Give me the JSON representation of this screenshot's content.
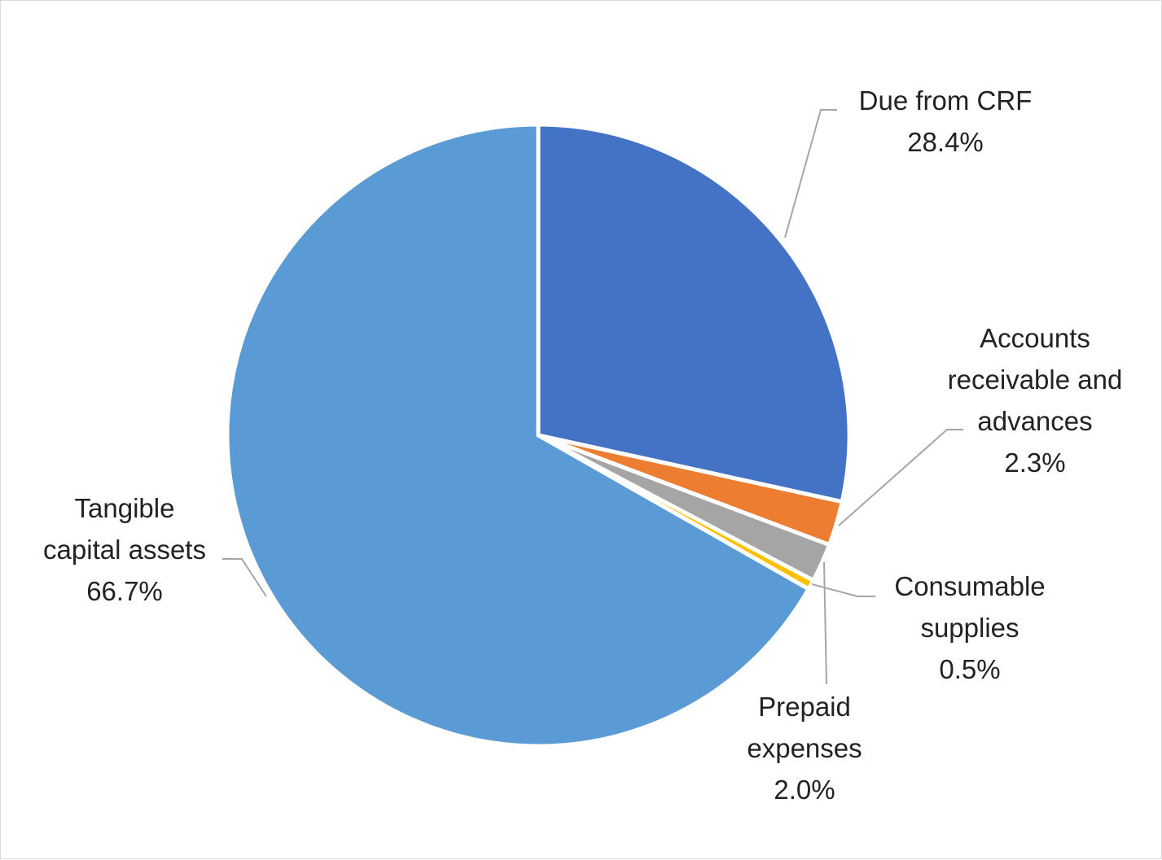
{
  "chart_data": {
    "type": "pie",
    "title": "",
    "slices": [
      {
        "label_lines": [
          "Due from CRF"
        ],
        "label": "Due from CRF",
        "value": 28.4,
        "value_text": "28.4%",
        "color": "#4472C4"
      },
      {
        "label_lines": [
          "Accounts",
          "receivable and",
          "advances"
        ],
        "label": "Accounts receivable and advances",
        "value": 2.3,
        "value_text": "2.3%",
        "color": "#ED7D31"
      },
      {
        "label_lines": [
          "Prepaid",
          "expenses"
        ],
        "label": "Prepaid expenses",
        "value": 2.0,
        "value_text": "2.0%",
        "color": "#A5A5A5"
      },
      {
        "label_lines": [
          "Consumable",
          "supplies"
        ],
        "label": "Consumable supplies",
        "value": 0.5,
        "value_text": "0.5%",
        "color": "#FFC000"
      },
      {
        "label_lines": [
          "Tangible",
          "capital assets"
        ],
        "label": "Tangible capital assets",
        "value": 66.7,
        "value_text": "66.7%",
        "color": "#5B9BD5"
      }
    ],
    "leader_line_color": "#A6A6A6"
  }
}
